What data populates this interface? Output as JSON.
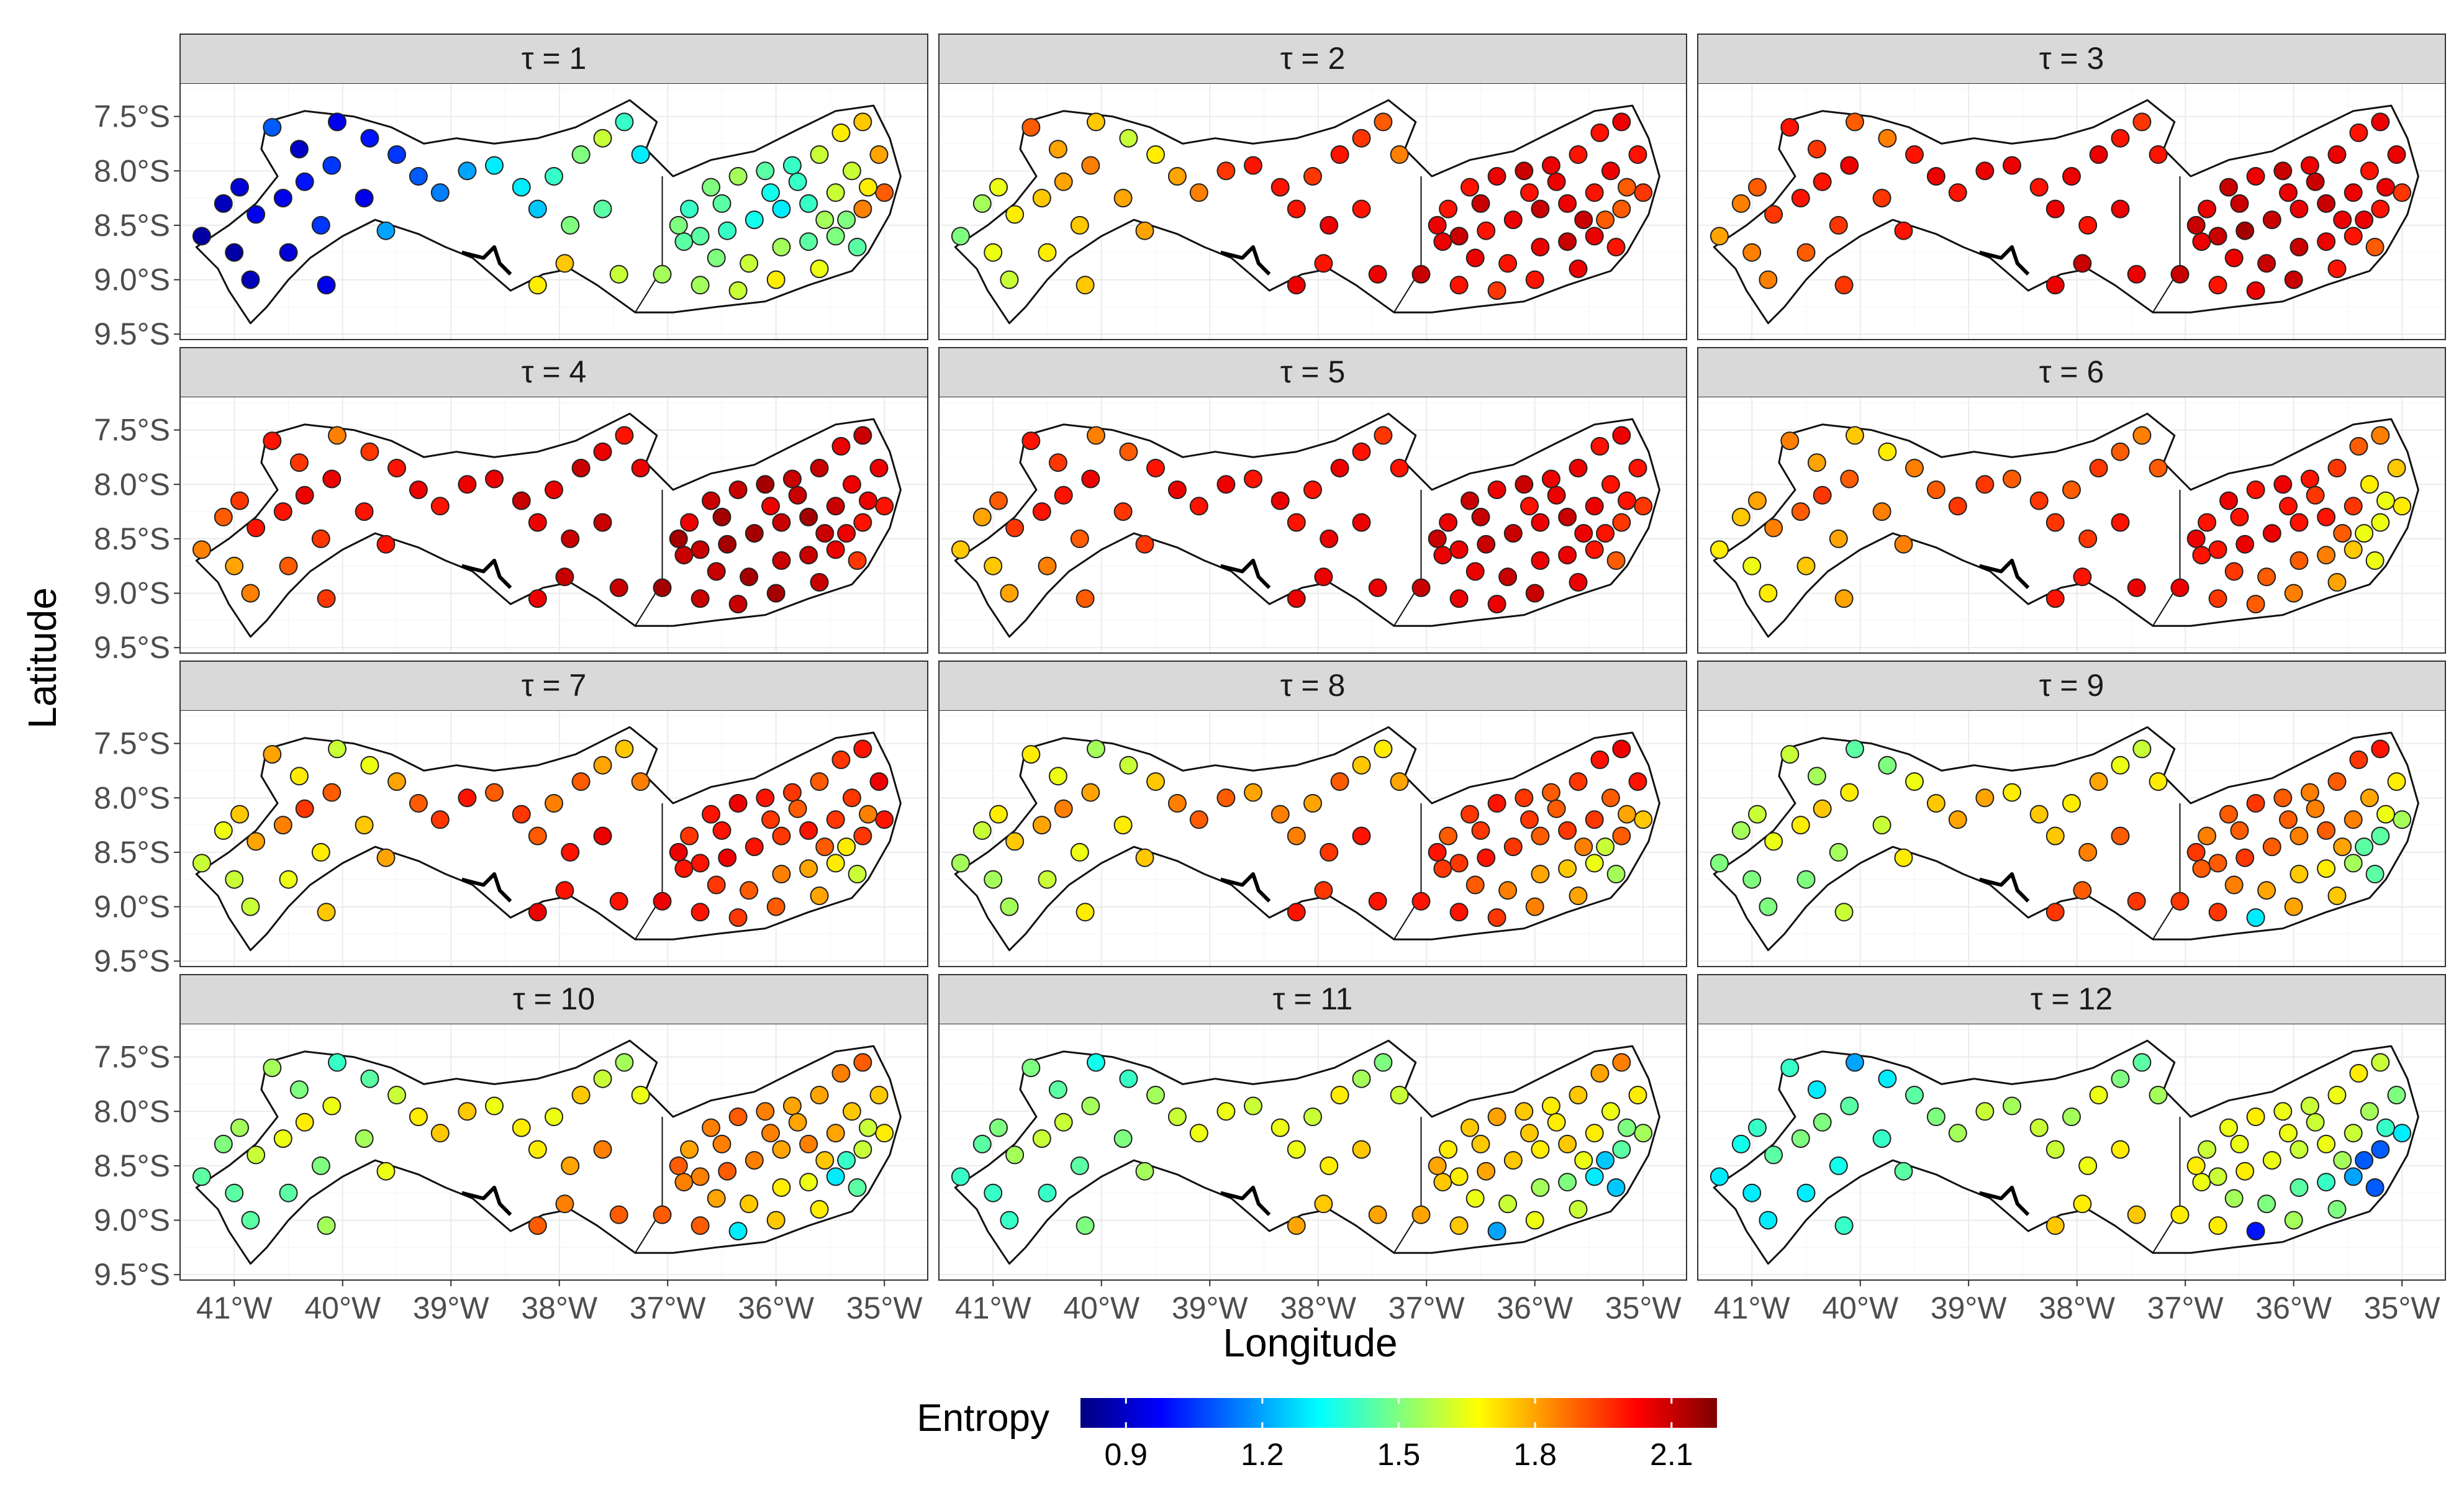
{
  "chart_data": {
    "type": "scatter",
    "kind": "faceted station map",
    "panel_titles": [
      "τ = 1",
      "τ = 2",
      "τ = 3",
      "τ = 4",
      "τ = 5",
      "τ = 6",
      "τ = 7",
      "τ = 8",
      "τ = 9",
      "τ = 10",
      "τ = 11",
      "τ = 12"
    ],
    "xlabel": "Longitude",
    "ylabel": "Latitude",
    "xlim": [
      -41.5,
      -34.6
    ],
    "ylim": [
      -9.55,
      -7.2
    ],
    "x_ticks": [
      -41,
      -40,
      -39,
      -38,
      -37,
      -36,
      -35
    ],
    "x_tick_labels": [
      "41°W",
      "40°W",
      "39°W",
      "38°W",
      "37°W",
      "36°W",
      "35°W"
    ],
    "y_ticks": [
      -7.5,
      -8.0,
      -8.5,
      -9.0,
      -9.5
    ],
    "y_tick_labels": [
      "7.5°S",
      "8.0°S",
      "8.5°S",
      "9.0°S",
      "9.5°S"
    ],
    "colorbar": {
      "title": "Entropy",
      "min": 0.8,
      "max": 2.2,
      "ticks": [
        0.9,
        1.2,
        1.5,
        1.8,
        2.1
      ],
      "tick_labels": [
        "0.9",
        "1.2",
        "1.5",
        "1.8",
        "2.1"
      ],
      "palette": [
        "#00007f",
        "#0000ff",
        "#007fff",
        "#00ffff",
        "#7fff7f",
        "#ffff00",
        "#ff7f00",
        "#ff0000",
        "#7f0000"
      ]
    },
    "boundary": [
      [
        -41.35,
        -8.7
      ],
      [
        -41.05,
        -8.5
      ],
      [
        -40.8,
        -8.3
      ],
      [
        -40.6,
        -8.05
      ],
      [
        -40.75,
        -7.8
      ],
      [
        -40.7,
        -7.55
      ],
      [
        -40.35,
        -7.45
      ],
      [
        -39.9,
        -7.5
      ],
      [
        -39.55,
        -7.6
      ],
      [
        -39.25,
        -7.75
      ],
      [
        -38.95,
        -7.7
      ],
      [
        -38.6,
        -7.75
      ],
      [
        -38.2,
        -7.7
      ],
      [
        -37.85,
        -7.6
      ],
      [
        -37.55,
        -7.45
      ],
      [
        -37.35,
        -7.35
      ],
      [
        -37.1,
        -7.55
      ],
      [
        -37.2,
        -7.8
      ],
      [
        -36.95,
        -8.05
      ],
      [
        -36.6,
        -7.9
      ],
      [
        -36.2,
        -7.82
      ],
      [
        -35.8,
        -7.62
      ],
      [
        -35.45,
        -7.45
      ],
      [
        -35.1,
        -7.4
      ],
      [
        -34.95,
        -7.7
      ],
      [
        -34.85,
        -8.05
      ],
      [
        -34.95,
        -8.4
      ],
      [
        -35.15,
        -8.75
      ],
      [
        -35.3,
        -8.92
      ],
      [
        -35.7,
        -9.05
      ],
      [
        -36.1,
        -9.2
      ],
      [
        -36.55,
        -9.25
      ],
      [
        -36.95,
        -9.3
      ],
      [
        -37.3,
        -9.3
      ],
      [
        -37.65,
        -9.05
      ],
      [
        -37.9,
        -8.9
      ],
      [
        -38.15,
        -8.95
      ],
      [
        -38.45,
        -9.1
      ],
      [
        -38.8,
        -8.8
      ],
      [
        -39.05,
        -8.7
      ],
      [
        -39.3,
        -8.58
      ],
      [
        -39.7,
        -8.45
      ],
      [
        -40.0,
        -8.6
      ],
      [
        -40.3,
        -8.8
      ],
      [
        -40.5,
        -9.0
      ],
      [
        -40.7,
        -9.25
      ],
      [
        -40.85,
        -9.4
      ],
      [
        -41.05,
        -9.1
      ],
      [
        -41.15,
        -8.9
      ]
    ],
    "inner_border": [
      [
        -37.05,
        -8.05
      ],
      [
        -37.05,
        -8.9
      ],
      [
        -37.3,
        -9.3
      ]
    ],
    "river_inlet": [
      [
        -38.9,
        -8.75
      ],
      [
        -38.7,
        -8.8
      ],
      [
        -38.6,
        -8.7
      ],
      [
        -38.55,
        -8.85
      ],
      [
        -38.45,
        -8.95
      ]
    ],
    "stations": [
      [
        -41.3,
        -8.6
      ],
      [
        -41.1,
        -8.3
      ],
      [
        -40.95,
        -8.15
      ],
      [
        -40.8,
        -8.4
      ],
      [
        -40.55,
        -8.25
      ],
      [
        -40.35,
        -8.1
      ],
      [
        -40.1,
        -7.95
      ],
      [
        -40.65,
        -7.6
      ],
      [
        -40.4,
        -7.8
      ],
      [
        -40.05,
        -7.55
      ],
      [
        -39.75,
        -7.7
      ],
      [
        -39.5,
        -7.85
      ],
      [
        -39.3,
        -8.05
      ],
      [
        -39.1,
        -8.2
      ],
      [
        -38.85,
        -8.0
      ],
      [
        -38.6,
        -7.95
      ],
      [
        -38.35,
        -8.15
      ],
      [
        -38.05,
        -8.05
      ],
      [
        -37.8,
        -7.85
      ],
      [
        -37.6,
        -7.7
      ],
      [
        -37.4,
        -7.55
      ],
      [
        -37.25,
        -7.85
      ],
      [
        -38.2,
        -8.35
      ],
      [
        -37.9,
        -8.5
      ],
      [
        -37.6,
        -8.35
      ],
      [
        -39.8,
        -8.25
      ],
      [
        -40.2,
        -8.5
      ],
      [
        -40.5,
        -8.75
      ],
      [
        -40.85,
        -9.0
      ],
      [
        -41.0,
        -8.75
      ],
      [
        -40.15,
        -9.05
      ],
      [
        -39.6,
        -8.55
      ],
      [
        -38.2,
        -9.05
      ],
      [
        -37.95,
        -8.85
      ],
      [
        -37.45,
        -8.95
      ],
      [
        -37.05,
        -8.95
      ],
      [
        -36.85,
        -8.65
      ],
      [
        -36.8,
        -8.35
      ],
      [
        -36.6,
        -8.15
      ],
      [
        -36.35,
        -8.05
      ],
      [
        -36.1,
        -8.0
      ],
      [
        -35.85,
        -7.95
      ],
      [
        -35.6,
        -7.85
      ],
      [
        -35.4,
        -7.65
      ],
      [
        -35.2,
        -7.55
      ],
      [
        -35.05,
        -7.85
      ],
      [
        -35.0,
        -8.2
      ],
      [
        -35.2,
        -8.35
      ],
      [
        -35.45,
        -8.2
      ],
      [
        -35.7,
        -8.3
      ],
      [
        -35.95,
        -8.35
      ],
      [
        -36.2,
        -8.45
      ],
      [
        -36.45,
        -8.55
      ],
      [
        -36.7,
        -8.6
      ],
      [
        -36.55,
        -8.8
      ],
      [
        -36.25,
        -8.85
      ],
      [
        -35.95,
        -8.7
      ],
      [
        -35.7,
        -8.65
      ],
      [
        -35.45,
        -8.6
      ],
      [
        -35.25,
        -8.7
      ],
      [
        -36.7,
        -9.05
      ],
      [
        -36.35,
        -9.1
      ],
      [
        -36.0,
        -9.0
      ],
      [
        -35.6,
        -8.9
      ],
      [
        -35.35,
        -8.45
      ],
      [
        -35.8,
        -8.1
      ],
      [
        -36.05,
        -8.2
      ],
      [
        -36.5,
        -8.3
      ],
      [
        -35.3,
        -8.0
      ],
      [
        -35.15,
        -8.15
      ],
      [
        -36.9,
        -8.5
      ],
      [
        -35.55,
        -8.45
      ]
    ],
    "panels": [
      [
        0.85,
        0.88,
        0.92,
        0.95,
        0.95,
        1.0,
        1.05,
        1.1,
        0.9,
        0.95,
        1.0,
        1.05,
        1.1,
        1.15,
        1.2,
        1.3,
        1.3,
        1.4,
        1.5,
        1.6,
        1.4,
        1.3,
        1.25,
        1.5,
        1.45,
        0.95,
        1.05,
        0.92,
        0.88,
        0.85,
        0.95,
        1.2,
        1.7,
        1.75,
        1.6,
        1.55,
        1.45,
        1.4,
        1.5,
        1.55,
        1.45,
        1.4,
        1.6,
        1.7,
        1.75,
        1.8,
        1.9,
        1.85,
        1.6,
        1.4,
        1.3,
        1.35,
        1.4,
        1.45,
        1.5,
        1.6,
        1.55,
        1.45,
        1.5,
        1.45,
        1.55,
        1.6,
        1.7,
        1.65,
        1.5,
        1.4,
        1.35,
        1.45,
        1.6,
        1.7,
        1.5,
        1.55
      ],
      [
        1.5,
        1.55,
        1.65,
        1.7,
        1.75,
        1.8,
        1.85,
        1.9,
        1.8,
        1.75,
        1.6,
        1.7,
        1.8,
        1.85,
        1.95,
        2.0,
        2.0,
        1.95,
        2.0,
        1.95,
        1.9,
        1.85,
        2.0,
        2.05,
        2.0,
        1.8,
        1.75,
        1.7,
        1.6,
        1.65,
        1.75,
        1.8,
        2.05,
        2.0,
        2.05,
        2.1,
        2.05,
        2.0,
        2.0,
        2.05,
        2.1,
        2.05,
        2.0,
        2.0,
        2.05,
        2.0,
        1.95,
        1.9,
        2.0,
        2.05,
        2.1,
        2.05,
        2.0,
        2.1,
        2.05,
        2.0,
        2.05,
        2.1,
        2.05,
        2.0,
        2.0,
        1.95,
        2.0,
        2.05,
        1.9,
        2.05,
        2.0,
        2.1,
        2.05,
        1.9,
        2.05,
        2.1
      ],
      [
        1.8,
        1.85,
        1.9,
        1.95,
        2.0,
        2.0,
        2.05,
        2.0,
        1.95,
        1.9,
        1.85,
        2.0,
        2.05,
        2.0,
        2.05,
        2.05,
        2.0,
        2.05,
        2.05,
        2.0,
        1.95,
        2.0,
        2.05,
        2.0,
        2.05,
        1.95,
        1.95,
        1.9,
        1.85,
        1.85,
        1.95,
        2.0,
        2.05,
        2.1,
        2.05,
        2.1,
        2.05,
        2.05,
        2.1,
        2.05,
        2.1,
        2.05,
        2.05,
        2.0,
        2.05,
        2.05,
        1.95,
        2.0,
        2.05,
        2.1,
        2.05,
        2.1,
        2.15,
        2.1,
        2.05,
        2.1,
        2.1,
        2.05,
        2.0,
        1.9,
        2.0,
        2.05,
        2.1,
        2.0,
        2.05,
        2.1,
        2.05,
        2.1,
        2.0,
        2.05,
        2.1,
        2.05
      ],
      [
        1.85,
        1.9,
        1.95,
        2.0,
        2.0,
        2.05,
        2.05,
        2.0,
        1.95,
        1.85,
        1.95,
        2.0,
        2.05,
        2.0,
        2.05,
        2.05,
        2.1,
        2.05,
        2.1,
        2.05,
        2.0,
        2.05,
        2.05,
        2.1,
        2.1,
        2.0,
        1.95,
        1.9,
        1.85,
        1.8,
        1.95,
        2.0,
        2.05,
        2.1,
        2.1,
        2.15,
        2.1,
        2.05,
        2.1,
        2.1,
        2.15,
        2.1,
        2.1,
        2.05,
        2.1,
        2.05,
        2.0,
        2.0,
        2.1,
        2.15,
        2.1,
        2.15,
        2.15,
        2.1,
        2.1,
        2.15,
        2.1,
        2.1,
        2.05,
        1.95,
        2.1,
        2.1,
        2.15,
        2.1,
        2.05,
        2.1,
        2.05,
        2.15,
        2.05,
        2.05,
        2.15,
        2.1
      ],
      [
        1.75,
        1.8,
        1.9,
        1.95,
        2.0,
        2.0,
        2.05,
        2.0,
        1.95,
        1.85,
        1.9,
        2.0,
        2.05,
        2.0,
        2.05,
        2.0,
        2.05,
        2.0,
        2.05,
        2.0,
        1.95,
        2.0,
        2.0,
        2.05,
        2.05,
        1.95,
        1.9,
        1.85,
        1.8,
        1.75,
        1.9,
        1.95,
        2.05,
        2.05,
        2.05,
        2.1,
        2.05,
        2.05,
        2.1,
        2.05,
        2.1,
        2.05,
        2.05,
        2.0,
        2.05,
        2.0,
        1.95,
        1.95,
        2.05,
        2.1,
        2.05,
        2.1,
        2.1,
        2.05,
        2.05,
        2.1,
        2.05,
        2.05,
        2.0,
        1.9,
        2.05,
        2.05,
        2.1,
        2.05,
        2.0,
        2.05,
        2.0,
        2.1,
        2.0,
        2.0,
        2.1,
        2.05
      ],
      [
        1.7,
        1.75,
        1.8,
        1.85,
        1.9,
        1.95,
        1.9,
        1.85,
        1.8,
        1.75,
        1.7,
        1.85,
        1.9,
        1.95,
        1.95,
        1.9,
        1.95,
        1.9,
        1.95,
        1.9,
        1.85,
        1.9,
        1.95,
        1.95,
        2.0,
        1.85,
        1.8,
        1.75,
        1.7,
        1.65,
        1.8,
        1.85,
        2.0,
        2.0,
        2.05,
        2.05,
        2.0,
        2.0,
        2.05,
        2.0,
        2.05,
        2.0,
        1.95,
        1.9,
        1.85,
        1.75,
        1.7,
        1.65,
        1.95,
        2.0,
        2.0,
        2.05,
        2.05,
        2.0,
        1.95,
        1.9,
        1.9,
        1.85,
        1.75,
        1.65,
        1.95,
        1.9,
        1.85,
        1.8,
        1.65,
        1.95,
        2.0,
        2.0,
        1.7,
        1.65,
        2.05,
        1.9
      ],
      [
        1.6,
        1.65,
        1.75,
        1.8,
        1.85,
        1.95,
        1.9,
        1.8,
        1.7,
        1.6,
        1.65,
        1.8,
        1.9,
        1.95,
        2.0,
        1.9,
        1.95,
        1.85,
        1.9,
        1.8,
        1.75,
        1.85,
        1.9,
        2.0,
        2.05,
        1.75,
        1.7,
        1.65,
        1.6,
        1.6,
        1.75,
        1.8,
        2.05,
        2.0,
        2.0,
        2.05,
        2.0,
        1.95,
        2.0,
        2.05,
        2.0,
        1.95,
        1.9,
        1.95,
        2.0,
        2.05,
        2.0,
        1.95,
        1.95,
        2.0,
        1.95,
        2.0,
        2.05,
        2.0,
        1.95,
        1.9,
        1.85,
        1.8,
        1.7,
        1.6,
        2.0,
        1.95,
        1.9,
        1.8,
        1.7,
        1.9,
        1.95,
        2.0,
        1.95,
        1.85,
        2.05,
        1.9
      ],
      [
        1.55,
        1.6,
        1.7,
        1.75,
        1.8,
        1.85,
        1.8,
        1.7,
        1.65,
        1.55,
        1.6,
        1.75,
        1.85,
        1.9,
        1.9,
        1.8,
        1.85,
        1.8,
        1.9,
        1.75,
        1.7,
        1.8,
        1.85,
        1.95,
        2.0,
        1.7,
        1.65,
        1.6,
        1.55,
        1.55,
        1.7,
        1.75,
        2.0,
        1.95,
        2.0,
        2.0,
        1.95,
        1.9,
        1.95,
        2.0,
        1.95,
        1.9,
        1.95,
        2.0,
        2.05,
        2.0,
        1.75,
        1.9,
        1.95,
        1.95,
        1.9,
        1.95,
        2.0,
        1.95,
        1.9,
        1.85,
        1.8,
        1.75,
        1.65,
        1.55,
        2.0,
        1.95,
        1.85,
        1.8,
        1.6,
        1.9,
        1.95,
        1.95,
        1.9,
        1.8,
        2.0,
        1.85
      ],
      [
        1.5,
        1.55,
        1.6,
        1.65,
        1.7,
        1.75,
        1.7,
        1.6,
        1.55,
        1.45,
        1.5,
        1.65,
        1.75,
        1.8,
        1.8,
        1.7,
        1.75,
        1.7,
        1.8,
        1.65,
        1.6,
        1.7,
        1.75,
        1.85,
        1.9,
        1.6,
        1.55,
        1.5,
        1.5,
        1.5,
        1.6,
        1.7,
        1.95,
        1.9,
        1.95,
        1.95,
        1.9,
        1.85,
        1.9,
        1.95,
        1.9,
        1.85,
        1.9,
        1.95,
        2.0,
        1.7,
        1.55,
        1.45,
        1.85,
        1.9,
        1.85,
        1.9,
        1.95,
        1.9,
        1.85,
        1.8,
        1.75,
        1.7,
        1.55,
        1.45,
        1.95,
        1.3,
        1.8,
        1.75,
        1.45,
        1.85,
        1.9,
        1.9,
        1.8,
        1.65,
        1.95,
        1.8
      ],
      [
        1.45,
        1.5,
        1.55,
        1.6,
        1.65,
        1.7,
        1.65,
        1.55,
        1.5,
        1.4,
        1.45,
        1.6,
        1.7,
        1.75,
        1.75,
        1.65,
        1.7,
        1.65,
        1.75,
        1.6,
        1.55,
        1.65,
        1.7,
        1.8,
        1.85,
        1.55,
        1.5,
        1.45,
        1.45,
        1.45,
        1.55,
        1.65,
        1.9,
        1.85,
        1.9,
        1.9,
        1.85,
        1.8,
        1.85,
        1.9,
        1.85,
        1.8,
        1.8,
        1.85,
        1.9,
        1.75,
        1.7,
        1.6,
        1.8,
        1.85,
        1.8,
        1.85,
        1.9,
        1.85,
        1.8,
        1.75,
        1.7,
        1.65,
        1.3,
        1.45,
        1.9,
        1.3,
        1.75,
        1.7,
        1.4,
        1.8,
        1.85,
        1.85,
        1.75,
        1.6,
        1.9,
        1.75
      ],
      [
        1.4,
        1.45,
        1.5,
        1.55,
        1.6,
        1.6,
        1.55,
        1.5,
        1.45,
        1.35,
        1.4,
        1.55,
        1.6,
        1.65,
        1.65,
        1.6,
        1.65,
        1.6,
        1.7,
        1.55,
        1.5,
        1.6,
        1.65,
        1.7,
        1.75,
        1.5,
        1.45,
        1.4,
        1.4,
        1.4,
        1.5,
        1.55,
        1.8,
        1.75,
        1.8,
        1.8,
        1.75,
        1.7,
        1.75,
        1.8,
        1.75,
        1.7,
        1.75,
        1.8,
        1.85,
        1.7,
        1.55,
        1.45,
        1.7,
        1.75,
        1.7,
        1.75,
        1.8,
        1.7,
        1.65,
        1.6,
        1.55,
        1.5,
        1.3,
        1.25,
        1.75,
        1.2,
        1.65,
        1.6,
        1.25,
        1.7,
        1.75,
        1.75,
        1.65,
        1.5,
        1.8,
        1.65
      ],
      [
        1.3,
        1.35,
        1.4,
        1.45,
        1.5,
        1.5,
        1.45,
        1.4,
        1.3,
        1.2,
        1.3,
        1.45,
        1.5,
        1.55,
        1.6,
        1.55,
        1.6,
        1.55,
        1.65,
        1.5,
        1.45,
        1.55,
        1.6,
        1.65,
        1.7,
        1.4,
        1.35,
        1.3,
        1.3,
        1.3,
        1.4,
        1.45,
        1.75,
        1.7,
        1.75,
        1.7,
        1.65,
        1.6,
        1.65,
        1.7,
        1.65,
        1.6,
        1.65,
        1.7,
        1.6,
        1.5,
        1.3,
        1.1,
        1.6,
        1.65,
        1.6,
        1.65,
        1.7,
        1.6,
        1.55,
        1.5,
        1.45,
        1.4,
        1.2,
        1.1,
        1.7,
        1.0,
        1.55,
        1.5,
        1.1,
        1.6,
        1.65,
        1.65,
        1.55,
        1.4,
        1.7,
        1.55
      ]
    ]
  }
}
